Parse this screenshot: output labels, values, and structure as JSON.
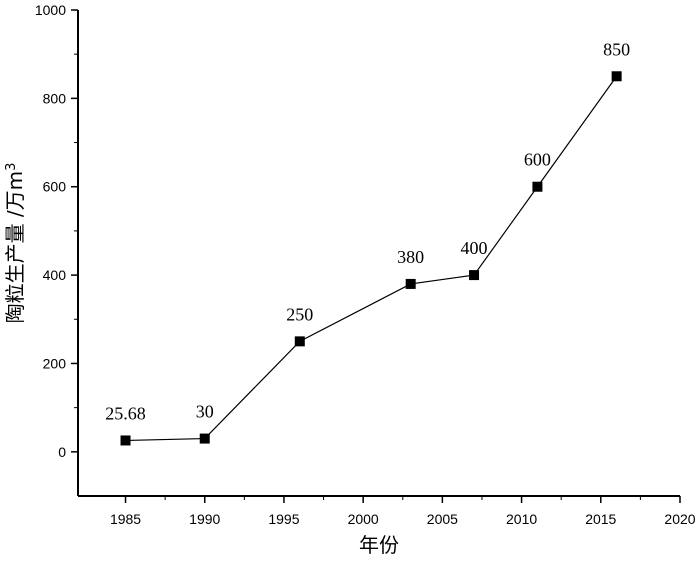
{
  "chart_data": {
    "type": "line",
    "title": "",
    "xlabel": "年份",
    "ylabel": "陶粒生产量 /万m",
    "ylabel_superscript": "3",
    "xlim": [
      1982,
      2020
    ],
    "ylim": [
      -100,
      1000
    ],
    "x_ticks": [
      1985,
      1990,
      1995,
      2000,
      2005,
      2010,
      2015,
      2020
    ],
    "y_ticks": [
      0,
      200,
      400,
      600,
      800,
      1000
    ],
    "grid": false,
    "legend": "none",
    "series": [
      {
        "x": [
          1985,
          1990,
          1996,
          2003,
          2007,
          2011,
          2016
        ],
        "values": [
          25.68,
          30,
          250,
          380,
          400,
          600,
          850
        ],
        "labels": [
          "25.68",
          "30",
          "250",
          "380",
          "400",
          "600",
          "850"
        ],
        "color": "#000000",
        "marker": "square"
      }
    ]
  }
}
